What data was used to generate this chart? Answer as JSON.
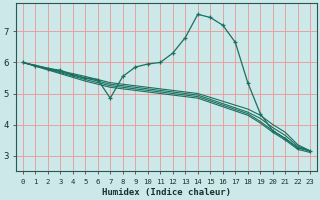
{
  "xlabel": "Humidex (Indice chaleur)",
  "bg_color": "#cce8e8",
  "grid_color": "#e8a0a0",
  "line_color": "#1a7060",
  "xlim": [
    -0.5,
    23.5
  ],
  "ylim": [
    2.5,
    7.9
  ],
  "yticks": [
    3,
    4,
    5,
    6,
    7
  ],
  "xticks": [
    0,
    1,
    2,
    3,
    4,
    5,
    6,
    7,
    8,
    9,
    10,
    11,
    12,
    13,
    14,
    15,
    16,
    17,
    18,
    19,
    20,
    21,
    22,
    23
  ],
  "lines": [
    {
      "x": [
        0,
        1,
        2,
        3,
        4,
        5,
        6,
        7,
        8,
        9,
        10,
        11,
        12,
        13,
        14,
        15,
        16,
        17,
        18,
        19,
        20,
        21,
        22,
        23
      ],
      "y": [
        6.0,
        5.9,
        5.8,
        5.75,
        5.6,
        5.5,
        5.45,
        4.85,
        5.55,
        5.85,
        5.95,
        6.0,
        6.3,
        6.8,
        7.55,
        7.45,
        7.2,
        6.65,
        5.35,
        4.35,
        3.8,
        3.55,
        3.25,
        3.15
      ],
      "markers": true
    },
    {
      "x": [
        0,
        5,
        6,
        7,
        8,
        9,
        10,
        14,
        18,
        19,
        20,
        21,
        22,
        23
      ],
      "y": [
        6.0,
        5.55,
        5.45,
        5.35,
        5.3,
        5.25,
        5.2,
        5.0,
        4.5,
        4.3,
        4.0,
        3.75,
        3.35,
        3.15
      ],
      "markers": false
    },
    {
      "x": [
        0,
        5,
        6,
        7,
        8,
        9,
        10,
        14,
        18,
        19,
        20,
        21,
        22,
        23
      ],
      "y": [
        6.0,
        5.5,
        5.4,
        5.3,
        5.25,
        5.2,
        5.15,
        4.95,
        4.4,
        4.2,
        3.9,
        3.65,
        3.3,
        3.15
      ],
      "markers": false
    },
    {
      "x": [
        0,
        5,
        6,
        7,
        8,
        9,
        10,
        14,
        18,
        19,
        20,
        21,
        22,
        23
      ],
      "y": [
        6.0,
        5.45,
        5.35,
        5.25,
        5.2,
        5.15,
        5.1,
        4.9,
        4.35,
        4.1,
        3.8,
        3.55,
        3.25,
        3.15
      ],
      "markers": false
    },
    {
      "x": [
        0,
        5,
        6,
        7,
        8,
        9,
        10,
        14,
        18,
        19,
        20,
        21,
        22,
        23
      ],
      "y": [
        6.0,
        5.4,
        5.3,
        5.2,
        5.15,
        5.1,
        5.05,
        4.85,
        4.3,
        4.05,
        3.75,
        3.5,
        3.2,
        3.1
      ],
      "markers": false
    }
  ],
  "font_color": "#1a3030",
  "axis_color": "#2a5555"
}
